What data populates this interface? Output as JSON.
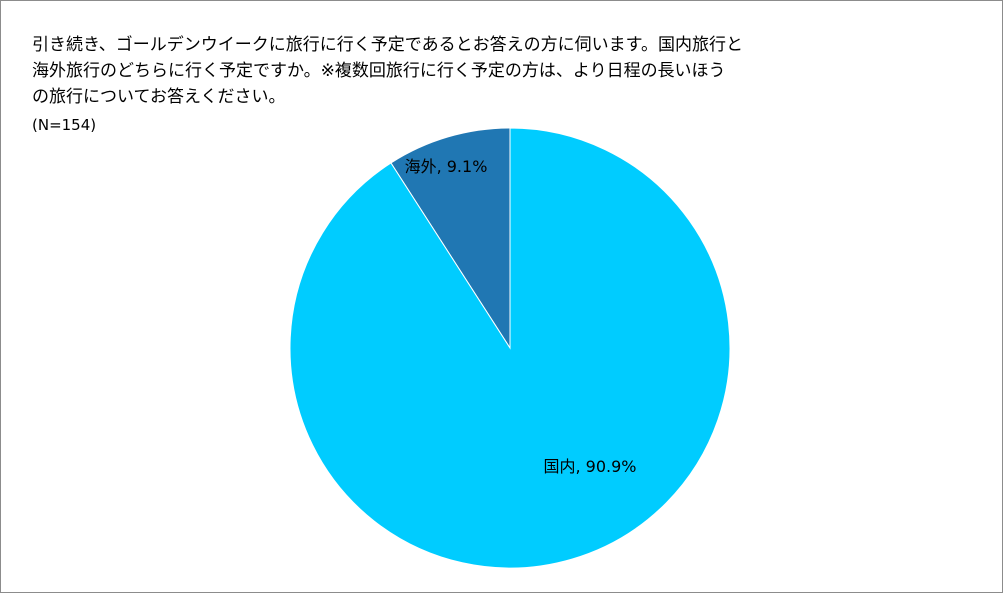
{
  "chart_data": {
    "type": "pie",
    "title_lines": [
      "引き続き、ゴールデンウイークに旅行に行く予定であるとお答えの方に伺います。国内旅行と",
      "海外旅行のどちらに行く予定ですか。※複数回旅行に行く予定の方は、より日程の長いほう",
      "の旅行についてお答えください。"
    ],
    "sample_size_label": "(N=154)",
    "slices": [
      {
        "name": "海外",
        "value": 9.1,
        "label": "海外, 9.1%",
        "color": "#2077B3"
      },
      {
        "name": "国内",
        "value": 90.9,
        "label": "国内, 90.9%",
        "color": "#00CCFF"
      }
    ],
    "unit": "%",
    "legend": "none"
  }
}
